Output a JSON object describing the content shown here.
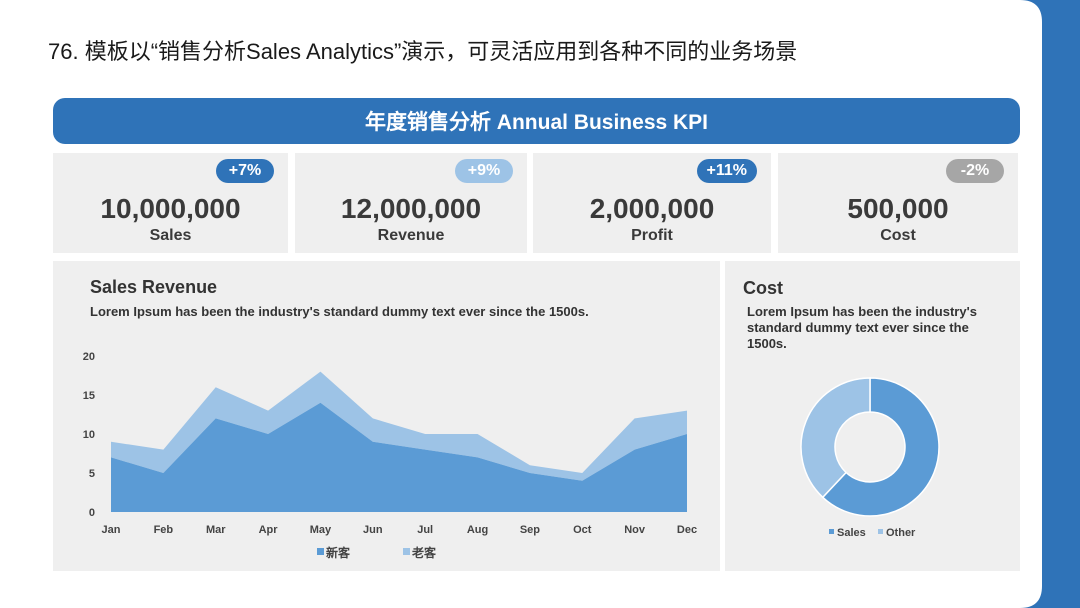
{
  "slide": {
    "title": "76. 模板以“销售分析Sales Analytics”演示，可灵活应用到各种不同的业务场景"
  },
  "banner": {
    "title": "年度销售分析 Annual Business KPI"
  },
  "kpis": [
    {
      "badge": "+7%",
      "badge_color": "#2f73b8",
      "value": "10,000,000",
      "label": "Sales"
    },
    {
      "badge": "+9%",
      "badge_color": "#9dc3e6",
      "value": "12,000,000",
      "label": "Revenue"
    },
    {
      "badge": "+11%",
      "badge_color": "#2f73b8",
      "value": "2,000,000",
      "label": "Profit"
    },
    {
      "badge": "-2%",
      "badge_color": "#a6a6a6",
      "value": "500,000",
      "label": "Cost"
    }
  ],
  "sales_panel": {
    "title": "Sales Revenue",
    "description": "Lorem Ipsum has been the industry's standard dummy text ever since the 1500s."
  },
  "cost_panel": {
    "title": "Cost",
    "description": "Lorem Ipsum has been the industry's standard dummy text ever since the 1500s."
  },
  "chart_data": [
    {
      "type": "area",
      "stacked": true,
      "categories": [
        "Jan",
        "Feb",
        "Mar",
        "Apr",
        "May",
        "Jun",
        "Jul",
        "Aug",
        "Sep",
        "Oct",
        "Nov",
        "Dec"
      ],
      "series": [
        {
          "name": "新客",
          "values": [
            7,
            5,
            12,
            10,
            14,
            9,
            8,
            7,
            5,
            4,
            8,
            10
          ],
          "color": "#5b9bd5"
        },
        {
          "name": "老客",
          "values": [
            2,
            3,
            4,
            3,
            4,
            3,
            2,
            3,
            1,
            1,
            4,
            3
          ],
          "color": "#9dc3e6"
        }
      ],
      "yticks": [
        0,
        5,
        10,
        15,
        20
      ],
      "ylim": [
        0,
        20
      ],
      "grid": false,
      "legend": "bottom"
    },
    {
      "type": "pie",
      "donut": true,
      "categories": [
        "Sales",
        "Other"
      ],
      "values": [
        62,
        38
      ],
      "colors": [
        "#5b9bd5",
        "#9dc3e6"
      ],
      "legend": "bottom"
    }
  ]
}
